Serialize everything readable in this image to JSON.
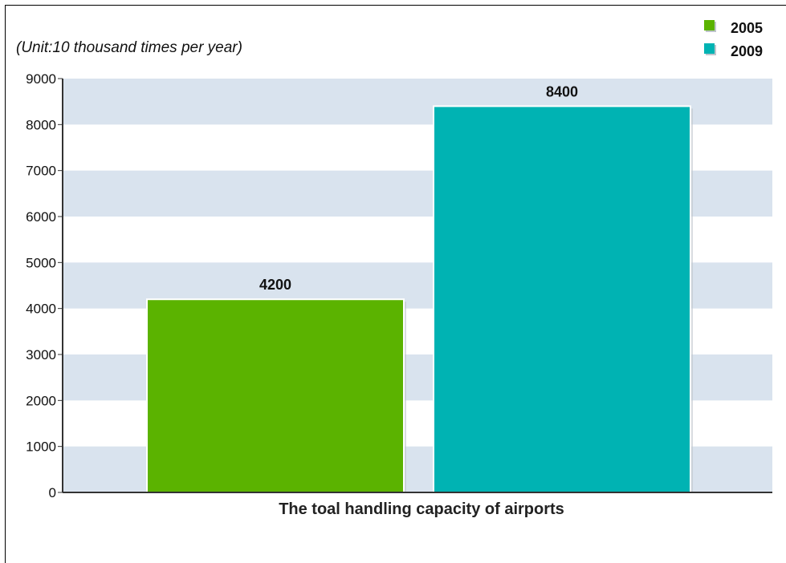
{
  "unit_note": "(Unit:10 thousand times per year)",
  "chart_data": {
    "type": "bar",
    "title": "",
    "xlabel": "The toal handling capacity of airports",
    "ylabel": "",
    "ylim": [
      0,
      9000
    ],
    "yticks": [
      0,
      1000,
      2000,
      3000,
      4000,
      5000,
      6000,
      7000,
      8000,
      9000
    ],
    "categories": [
      "The toal handling capacity of airports"
    ],
    "series": [
      {
        "name": "2005",
        "values": [
          4200
        ],
        "color": "#5bb300"
      },
      {
        "name": "2009",
        "values": [
          8400
        ],
        "color": "#00b3b3"
      }
    ],
    "data_labels": [
      "4200",
      "8400"
    ],
    "grid": "alternating horizontal bands",
    "band_color": "#d9e3ee",
    "legend": "top-right"
  }
}
